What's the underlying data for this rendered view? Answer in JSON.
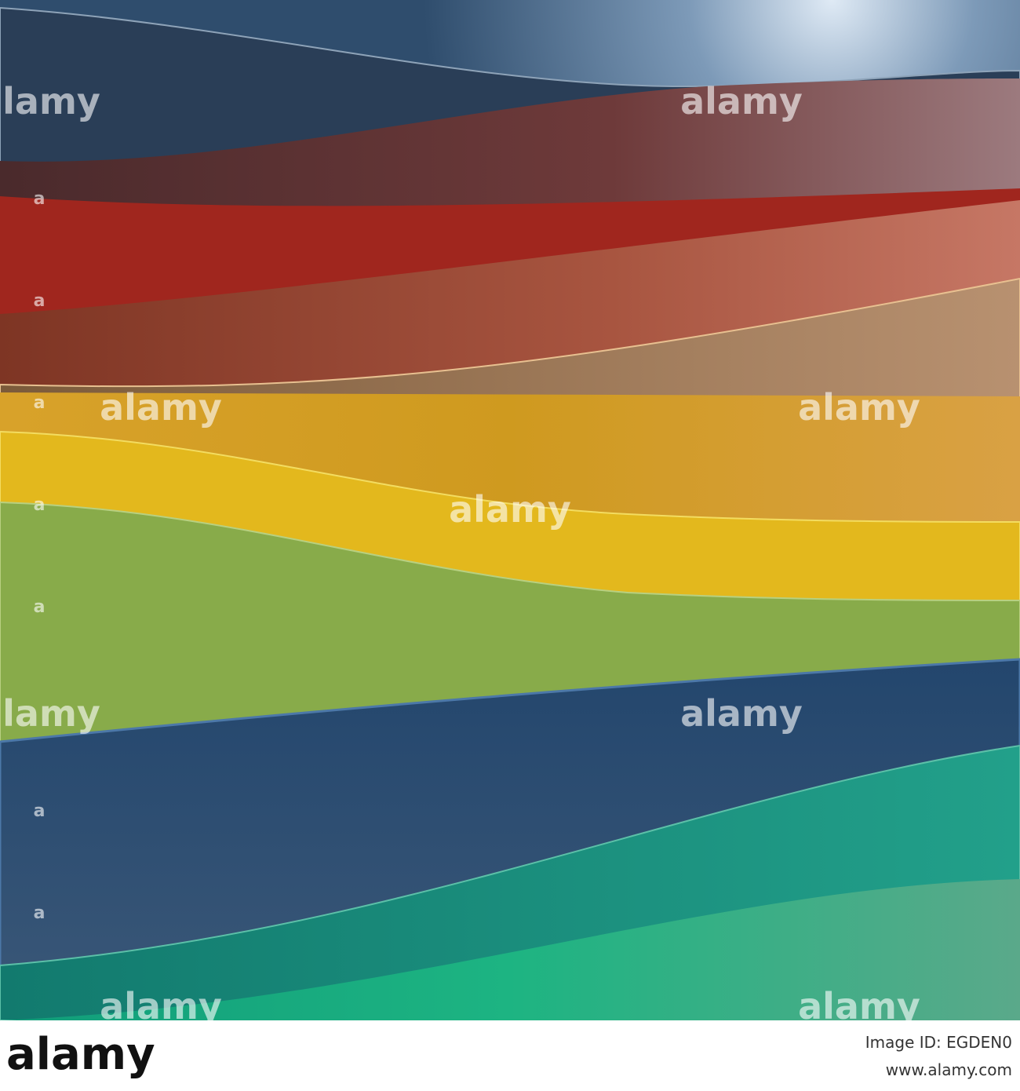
{
  "watermark": {
    "word": "alamy",
    "mark": "a"
  },
  "footer": {
    "logo": "alamy",
    "image_id": "Image ID: EGDEN0",
    "url": "www.alamy.com"
  }
}
